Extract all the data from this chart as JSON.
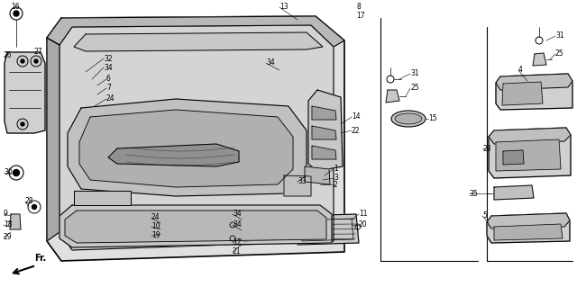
{
  "bg_color": "#ffffff",
  "lc": "#000000",
  "fig_width": 6.4,
  "fig_height": 3.19,
  "dpi": 100,
  "gray1": "#c8c8c8",
  "gray2": "#b0b0b0",
  "gray3": "#909090",
  "gray4": "#d8d8d8",
  "gray5": "#e8e8e8"
}
